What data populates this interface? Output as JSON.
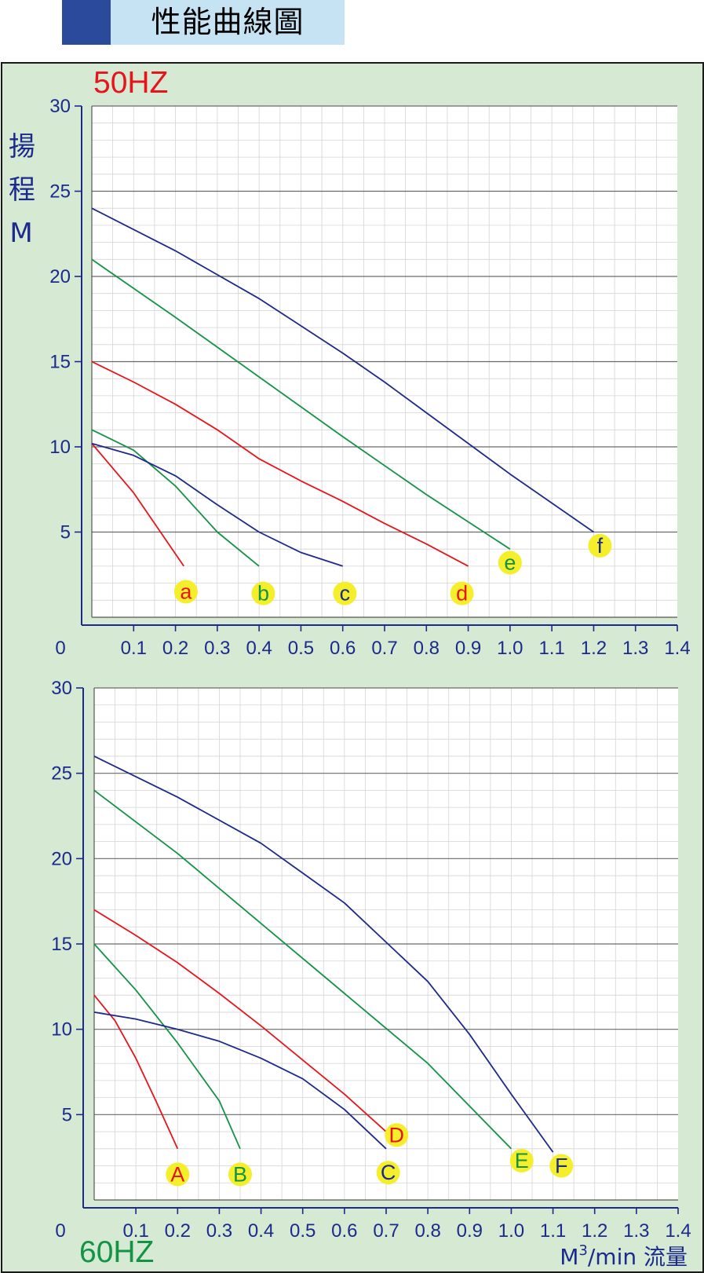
{
  "header": {
    "title": "性能曲線圖"
  },
  "chart_data": [
    {
      "type": "line",
      "panel_label": "50HZ",
      "ylabel_chars": [
        "揚",
        "程",
        "M"
      ],
      "origin_label": "0",
      "x_ticks": [
        "0.1",
        "0.2",
        "0.3",
        "0.4",
        "0.5",
        "0.6",
        "0.7",
        "0.8",
        "0.9",
        "1.0",
        "1.1",
        "1.2",
        "1.3",
        "1.4"
      ],
      "y_ticks": [
        "5",
        "10",
        "15",
        "20",
        "25",
        "30"
      ],
      "xlim": [
        0,
        1.4
      ],
      "ylim": [
        0,
        30
      ],
      "grid": true,
      "series": [
        {
          "name": "a",
          "color": "#e8141c",
          "points": [
            [
              0,
              10.2
            ],
            [
              0.1,
              7.3
            ],
            [
              0.22,
              3.0
            ]
          ]
        },
        {
          "name": "b",
          "color": "#139345",
          "points": [
            [
              0,
              11.0
            ],
            [
              0.1,
              9.8
            ],
            [
              0.2,
              7.7
            ],
            [
              0.3,
              5.0
            ],
            [
              0.4,
              3.0
            ]
          ]
        },
        {
          "name": "c",
          "color": "#1b2a8c",
          "points": [
            [
              0,
              10.2
            ],
            [
              0.1,
              9.5
            ],
            [
              0.2,
              8.3
            ],
            [
              0.3,
              6.6
            ],
            [
              0.4,
              5.0
            ],
            [
              0.5,
              3.8
            ],
            [
              0.6,
              3.0
            ]
          ]
        },
        {
          "name": "d",
          "color": "#e8141c",
          "points": [
            [
              0,
              15.0
            ],
            [
              0.1,
              13.8
            ],
            [
              0.2,
              12.5
            ],
            [
              0.3,
              11.0
            ],
            [
              0.4,
              9.3
            ],
            [
              0.5,
              8.0
            ],
            [
              0.6,
              6.8
            ],
            [
              0.7,
              5.5
            ],
            [
              0.8,
              4.3
            ],
            [
              0.9,
              3.0
            ]
          ]
        },
        {
          "name": "e",
          "color": "#139345",
          "points": [
            [
              0,
              21.0
            ],
            [
              0.2,
              17.6
            ],
            [
              0.4,
              14.1
            ],
            [
              0.6,
              10.6
            ],
            [
              0.8,
              7.2
            ],
            [
              1.0,
              4.0
            ]
          ]
        },
        {
          "name": "f",
          "color": "#1b2a8c",
          "points": [
            [
              0,
              24.0
            ],
            [
              0.2,
              21.5
            ],
            [
              0.4,
              18.7
            ],
            [
              0.6,
              15.5
            ],
            [
              0.7,
              13.8
            ],
            [
              0.8,
              12.0
            ],
            [
              1.0,
              8.4
            ],
            [
              1.2,
              5.0
            ]
          ]
        }
      ]
    },
    {
      "type": "line",
      "panel_label": "60HZ",
      "xlabel_unit": "M",
      "xlabel_sup": "3",
      "xlabel_rest": "/min 流量",
      "origin_label": "0",
      "x_ticks": [
        "0.1",
        "0.2",
        "0.3",
        "0.4",
        "0.5",
        "0.6",
        "0.7",
        "0.8",
        "0.9",
        "1.0",
        "1.1",
        "1.2",
        "1.3",
        "1.4"
      ],
      "y_ticks": [
        "5",
        "10",
        "15",
        "20",
        "25",
        "30"
      ],
      "xlim": [
        0,
        1.4
      ],
      "ylim": [
        0,
        30
      ],
      "grid": true,
      "series": [
        {
          "name": "A",
          "color": "#e8141c",
          "points": [
            [
              0,
              12.0
            ],
            [
              0.05,
              10.5
            ],
            [
              0.1,
              8.3
            ],
            [
              0.15,
              5.7
            ],
            [
              0.2,
              3.0
            ]
          ]
        },
        {
          "name": "B",
          "color": "#139345",
          "points": [
            [
              0,
              15.0
            ],
            [
              0.1,
              12.3
            ],
            [
              0.2,
              9.2
            ],
            [
              0.3,
              5.8
            ],
            [
              0.35,
              3.0
            ]
          ]
        },
        {
          "name": "C",
          "color": "#1b2a8c",
          "points": [
            [
              0,
              11.0
            ],
            [
              0.1,
              10.6
            ],
            [
              0.2,
              10.0
            ],
            [
              0.3,
              9.3
            ],
            [
              0.4,
              8.3
            ],
            [
              0.5,
              7.1
            ],
            [
              0.6,
              5.3
            ],
            [
              0.7,
              3.0
            ]
          ]
        },
        {
          "name": "D",
          "color": "#e8141c",
          "points": [
            [
              0,
              17.0
            ],
            [
              0.1,
              15.5
            ],
            [
              0.2,
              13.9
            ],
            [
              0.3,
              12.1
            ],
            [
              0.4,
              10.2
            ],
            [
              0.5,
              8.2
            ],
            [
              0.6,
              6.2
            ],
            [
              0.7,
              4.0
            ]
          ]
        },
        {
          "name": "E",
          "color": "#139345",
          "points": [
            [
              0,
              24.0
            ],
            [
              0.2,
              20.3
            ],
            [
              0.4,
              16.2
            ],
            [
              0.6,
              12.1
            ],
            [
              0.8,
              8.0
            ],
            [
              1.0,
              3.0
            ]
          ]
        },
        {
          "name": "F",
          "color": "#1b2a8c",
          "points": [
            [
              0,
              26.0
            ],
            [
              0.2,
              23.6
            ],
            [
              0.4,
              20.9
            ],
            [
              0.6,
              17.4
            ],
            [
              0.8,
              12.8
            ],
            [
              0.9,
              9.7
            ],
            [
              1.0,
              6.2
            ],
            [
              1.1,
              2.8
            ]
          ]
        }
      ]
    }
  ]
}
